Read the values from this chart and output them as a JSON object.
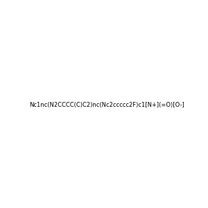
{
  "smiles": "Nc1nc(N2CCCC(C)C2)nc(Nc2ccccc2F)c1[N+](=O)[O-]",
  "image_size": 300,
  "background_color": "#e8e8e8",
  "title": ""
}
